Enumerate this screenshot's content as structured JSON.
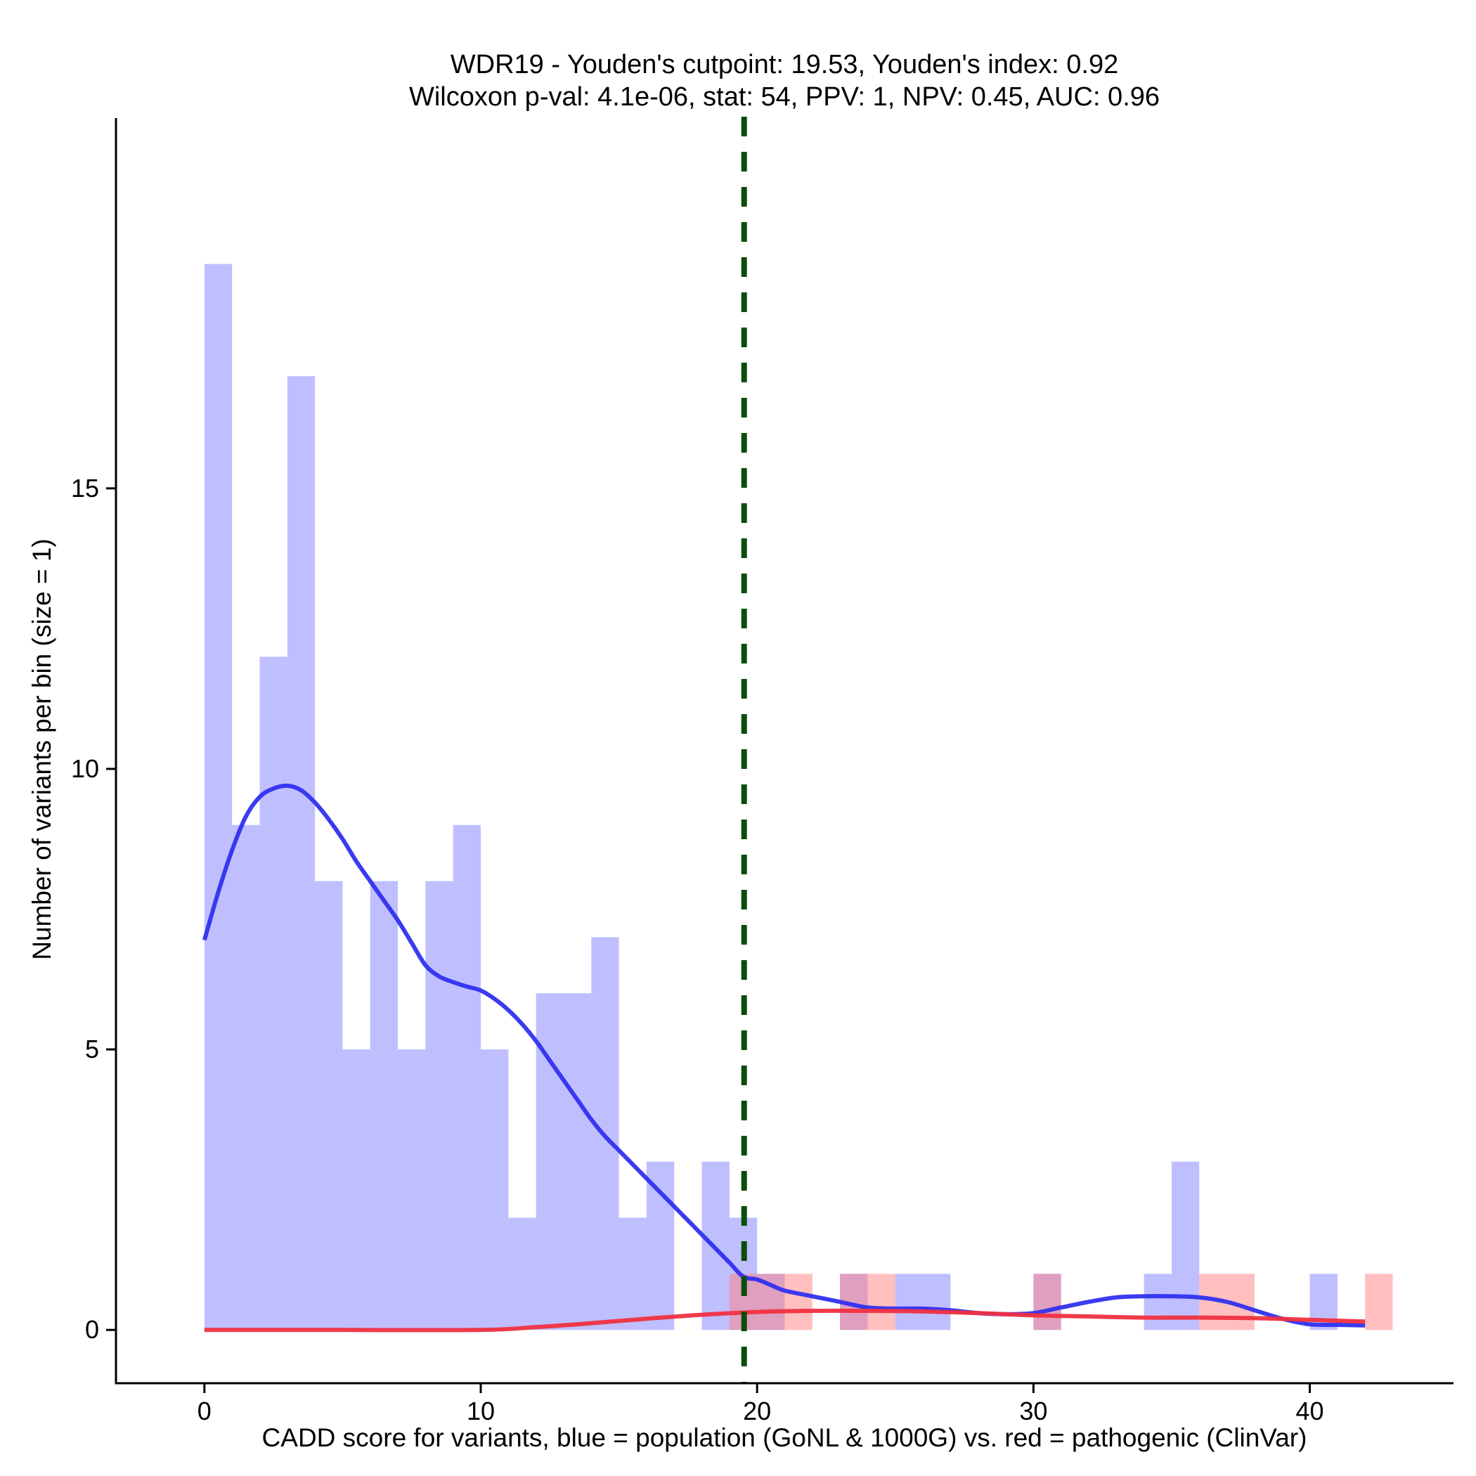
{
  "chart_data": {
    "type": "histogram",
    "title": "WDR19 - Youden's cutpoint: 19.53, Youden's index: 0.92",
    "subtitle": "Wilcoxon p-val: 4.1e-06, stat: 54, PPV: 1, NPV: 0.45, AUC: 0.96",
    "xlabel": "CADD score for variants, blue = population (GoNL & 1000G) vs. red = pathogenic (ClinVar)",
    "ylabel": "Number of variants per bin (size = 1)",
    "xlim": [
      -3.2,
      45.2
    ],
    "ylim": [
      -0.95,
      21.6
    ],
    "x_ticks": [
      0,
      10,
      20,
      30,
      40
    ],
    "y_ticks": [
      0,
      5,
      10,
      15
    ],
    "bin_width": 1,
    "cutpoint": 19.53,
    "colors": {
      "population": "#8080ff",
      "pathogenic": "#ff8080",
      "population_line": "#3030f0",
      "pathogenic_line": "#f03040",
      "cutpoint": "#0b4d0b"
    },
    "series": [
      {
        "name": "population",
        "bins": [
          {
            "x0": 0,
            "x1": 1,
            "count": 19
          },
          {
            "x0": 1,
            "x1": 2,
            "count": 9
          },
          {
            "x0": 2,
            "x1": 3,
            "count": 12
          },
          {
            "x0": 3,
            "x1": 4,
            "count": 17
          },
          {
            "x0": 4,
            "x1": 5,
            "count": 8
          },
          {
            "x0": 5,
            "x1": 6,
            "count": 5
          },
          {
            "x0": 6,
            "x1": 7,
            "count": 8
          },
          {
            "x0": 7,
            "x1": 8,
            "count": 5
          },
          {
            "x0": 8,
            "x1": 9,
            "count": 8
          },
          {
            "x0": 9,
            "x1": 10,
            "count": 9
          },
          {
            "x0": 10,
            "x1": 11,
            "count": 5
          },
          {
            "x0": 11,
            "x1": 12,
            "count": 2
          },
          {
            "x0": 12,
            "x1": 13,
            "count": 6
          },
          {
            "x0": 13,
            "x1": 14,
            "count": 6
          },
          {
            "x0": 14,
            "x1": 15,
            "count": 7
          },
          {
            "x0": 15,
            "x1": 16,
            "count": 2
          },
          {
            "x0": 16,
            "x1": 17,
            "count": 3
          },
          {
            "x0": 18,
            "x1": 19,
            "count": 3
          },
          {
            "x0": 19,
            "x1": 20,
            "count": 2
          },
          {
            "x0": 20,
            "x1": 21,
            "count": 1
          },
          {
            "x0": 23,
            "x1": 24,
            "count": 1
          },
          {
            "x0": 25,
            "x1": 26,
            "count": 1
          },
          {
            "x0": 26,
            "x1": 27,
            "count": 1
          },
          {
            "x0": 30,
            "x1": 31,
            "count": 1
          },
          {
            "x0": 34,
            "x1": 35,
            "count": 1
          },
          {
            "x0": 35,
            "x1": 36,
            "count": 3
          },
          {
            "x0": 40,
            "x1": 41,
            "count": 1
          }
        ]
      },
      {
        "name": "pathogenic",
        "bins": [
          {
            "x0": 19,
            "x1": 20,
            "count": 1
          },
          {
            "x0": 20,
            "x1": 21,
            "count": 1
          },
          {
            "x0": 21,
            "x1": 22,
            "count": 1
          },
          {
            "x0": 23,
            "x1": 24,
            "count": 1
          },
          {
            "x0": 24,
            "x1": 25,
            "count": 1
          },
          {
            "x0": 30,
            "x1": 31,
            "count": 1
          },
          {
            "x0": 36,
            "x1": 37,
            "count": 1
          },
          {
            "x0": 37,
            "x1": 38,
            "count": 1
          },
          {
            "x0": 42,
            "x1": 43,
            "count": 1
          }
        ]
      }
    ],
    "density_curves": [
      {
        "name": "population",
        "x": [
          0,
          0.5,
          1,
          1.5,
          2,
          2.5,
          3,
          3.5,
          4,
          4.5,
          5,
          5.5,
          6,
          6.5,
          7,
          7.5,
          8,
          8.5,
          9,
          9.5,
          10,
          10.5,
          11,
          11.5,
          12,
          12.5,
          13,
          13.5,
          14,
          14.5,
          15,
          15.5,
          16,
          16.5,
          17,
          17.5,
          18,
          18.5,
          19,
          19.5,
          20,
          20.5,
          21,
          22,
          23,
          24,
          25,
          26,
          27,
          28,
          29,
          30,
          31,
          32,
          33,
          34,
          35,
          36,
          37,
          38,
          39,
          40,
          41,
          42
        ],
        "y": [
          6.95,
          7.8,
          8.55,
          9.15,
          9.5,
          9.65,
          9.7,
          9.62,
          9.4,
          9.1,
          8.75,
          8.35,
          8.0,
          7.65,
          7.3,
          6.9,
          6.5,
          6.3,
          6.2,
          6.12,
          6.05,
          5.9,
          5.7,
          5.45,
          5.15,
          4.8,
          4.45,
          4.1,
          3.75,
          3.45,
          3.2,
          2.95,
          2.7,
          2.45,
          2.2,
          1.95,
          1.7,
          1.45,
          1.2,
          0.95,
          0.9,
          0.8,
          0.7,
          0.6,
          0.5,
          0.4,
          0.38,
          0.38,
          0.35,
          0.3,
          0.28,
          0.3,
          0.4,
          0.5,
          0.58,
          0.6,
          0.6,
          0.58,
          0.5,
          0.35,
          0.2,
          0.1,
          0.09,
          0.08
        ]
      },
      {
        "name": "pathogenic",
        "x": [
          0,
          5,
          10,
          12,
          14,
          16,
          18,
          20,
          22,
          24,
          26,
          28,
          30,
          32,
          34,
          36,
          38,
          40,
          42
        ],
        "y": [
          0,
          0,
          0,
          0.05,
          0.12,
          0.2,
          0.27,
          0.32,
          0.34,
          0.34,
          0.33,
          0.3,
          0.26,
          0.24,
          0.22,
          0.22,
          0.21,
          0.18,
          0.15
        ]
      }
    ]
  }
}
